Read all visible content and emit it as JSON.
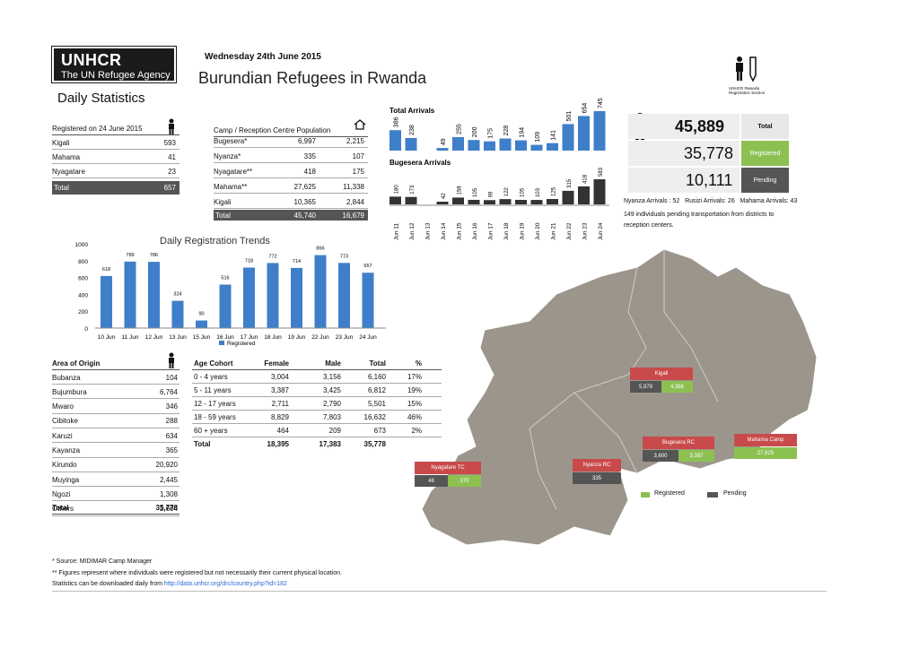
{
  "header": {
    "org": "UNHCR",
    "org_sub": "The UN Refugee Agency",
    "date": "Wednesday 24th June 2015",
    "title": "Burundian Refugees in Rwanda",
    "daily": "Daily Statistics",
    "sector_label": "UNHCR Rwanda Registration Section"
  },
  "registered": {
    "header": "Registered on 24 June 2015",
    "rows": [
      {
        "name": "Kigali",
        "value": "593"
      },
      {
        "name": "Mahama",
        "value": "41"
      },
      {
        "name": "Nyagatare",
        "value": "23"
      }
    ],
    "total_label": "Total",
    "total": "657"
  },
  "camps": {
    "header": "Camp / Reception Centre Population",
    "rows": [
      {
        "name": "Bugesera*",
        "a": "6,997",
        "b": "2,215"
      },
      {
        "name": "Nyanza*",
        "a": "335",
        "b": "107"
      },
      {
        "name": "Nyagatare**",
        "a": "418",
        "b": "175"
      },
      {
        "name": "Mahama**",
        "a": "27,625",
        "b": "11,338"
      },
      {
        "name": "Kigali",
        "a": "10,365",
        "b": "2,844"
      }
    ],
    "total_label": "Total",
    "total_a": "45,740",
    "total_b": "16,679"
  },
  "arrivals": {
    "total_title": "Total Arrivals",
    "bugesera_title": "Bugesera Arrivals",
    "dates": [
      "Jun 11",
      "Jun 12",
      "Jun 13",
      "Jun 14",
      "Jun 15",
      "Jun 16",
      "Jun 17",
      "Jun 18",
      "Jun 19",
      "Jun 20",
      "Jun 21",
      "Jun 22",
      "Jun 23",
      "Jun 24"
    ],
    "total_values": [
      386,
      238,
      0,
      49,
      255,
      200,
      175,
      228,
      194,
      109,
      141,
      501,
      654,
      745
    ],
    "total_labels": [
      "386",
      "238",
      "",
      "49",
      "255",
      "200",
      "175",
      "228",
      "194",
      "109",
      "141",
      "501",
      "654",
      "745"
    ],
    "bugesera_values": [
      180,
      173,
      0,
      42,
      158,
      105,
      99,
      122,
      105,
      103,
      125,
      315,
      418,
      583
    ],
    "bugesera_labels": [
      "180",
      "173",
      "",
      "42",
      "158",
      "105",
      "99",
      "122",
      "105",
      "103",
      "125",
      "315",
      "418",
      "583"
    ],
    "colors": {
      "total": "#3f7fc9",
      "bugesera": "#333333"
    }
  },
  "stats": {
    "total": "45,889",
    "total_label": "Total",
    "registered": "35,778",
    "registered_label": "Registered",
    "pending": "10,111",
    "pending_label": "Pending",
    "note1": "Nyanza Arrivals : 52   Rusizi Arrivals: 26   Mahama Arrivals: 43",
    "note2": "149 individuals pending transportation from districts to",
    "note3": "reception centers."
  },
  "chart_data": {
    "type": "bar",
    "title": "Daily Registration Trends",
    "categories": [
      "10 Jun",
      "11 Jun",
      "12 Jun",
      "13 Jun",
      "15 Jun",
      "16 Jun",
      "17 Jun",
      "18 Jun",
      "19 Jun",
      "22 Jun",
      "23 Jun",
      "24 Jun"
    ],
    "values": [
      618,
      789,
      786,
      324,
      90,
      516,
      718,
      772,
      714,
      866,
      773,
      657
    ],
    "ylim": [
      0,
      1000
    ],
    "yticks": [
      "0",
      "200",
      "400",
      "600",
      "800",
      "1000"
    ],
    "series": [
      {
        "name": "Registered",
        "values": [
          618,
          789,
          786,
          324,
          90,
          516,
          718,
          772,
          714,
          866,
          773,
          657
        ]
      }
    ],
    "color": "#3f7fc9",
    "legend": "bottom"
  },
  "origin": {
    "header": "Area of Origin",
    "rows": [
      {
        "name": "Bubanza",
        "value": "104"
      },
      {
        "name": "Bujumbura",
        "value": "6,764"
      },
      {
        "name": "Mwaro",
        "value": "346"
      },
      {
        "name": "Cibitoke",
        "value": "288"
      },
      {
        "name": "Karuzi",
        "value": "634"
      },
      {
        "name": "Kayanza",
        "value": "365"
      },
      {
        "name": "Kirundo",
        "value": "20,920"
      },
      {
        "name": "Muyinga",
        "value": "2,445"
      },
      {
        "name": "Ngozi",
        "value": "1,308"
      },
      {
        "name": "Others",
        "value": "2,604"
      }
    ],
    "total_label": "Total",
    "total": "35,778"
  },
  "age": {
    "headers": [
      "Age Cohort",
      "Female",
      "Male",
      "Total",
      "%"
    ],
    "rows": [
      [
        "0 - 4 years",
        "3,004",
        "3,156",
        "6,160",
        "17%"
      ],
      [
        "5 - 11 years",
        "3,387",
        "3,425",
        "6,812",
        "19%"
      ],
      [
        "12 - 17 years",
        "2,711",
        "2,790",
        "5,501",
        "15%"
      ],
      [
        "18 - 59 years",
        "8,829",
        "7,803",
        "16,632",
        "46%"
      ],
      [
        "60 + years",
        "464",
        "209",
        "673",
        "2%"
      ]
    ],
    "total": [
      "Total",
      "18,395",
      "17,383",
      "35,778",
      ""
    ]
  },
  "map": {
    "labels": [
      {
        "name": "Kigali",
        "reg": "4,386",
        "pend": "5,979"
      },
      {
        "name": "Bugesera RC",
        "reg": "3,397",
        "pend": "3,600"
      },
      {
        "name": "Mahama Camp",
        "reg": "27,625",
        "pend": ""
      },
      {
        "name": "Nyanza RC",
        "reg": "",
        "pend": "335"
      },
      {
        "name": "Nyagatare TC",
        "reg": "370",
        "pend": "48"
      }
    ],
    "legend_registered": "Registered",
    "legend_pending": "Pending",
    "colors": {
      "registered": "#8cc152",
      "pending": "#555555",
      "label": "#c94a4a",
      "land": "#9c958b"
    }
  },
  "footer": {
    "line1": "* Source: MIDIMAR Camp Manager",
    "line2": "** Figures represent where individuals were registered but not necessarily their current physical location.",
    "line3": "Statistics can be downloaded daily from ",
    "link": "http://data.unhcr.org/drc/country.php?id=182"
  }
}
